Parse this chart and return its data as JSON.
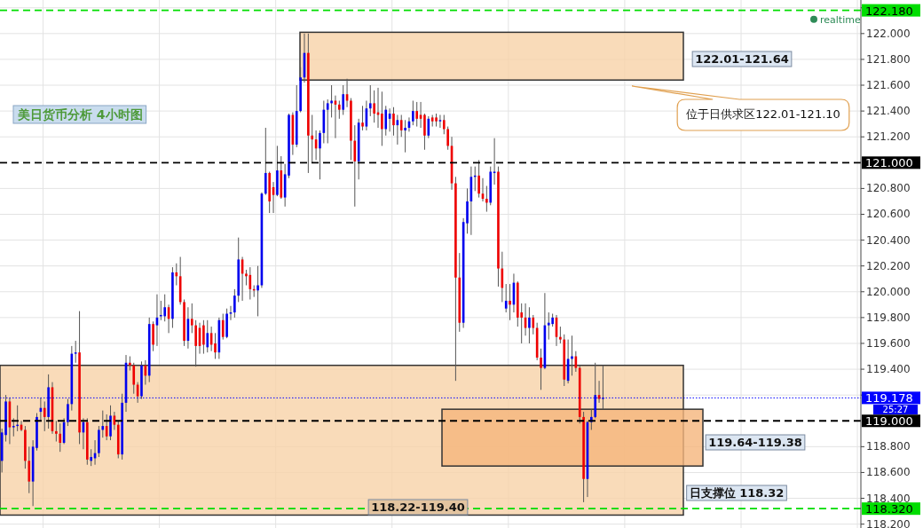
{
  "chart_data": {
    "type": "candlestick",
    "title": "美日货币分析 4小时图",
    "categories": [
      null,
      null,
      null,
      null,
      null,
      null,
      null,
      null,
      null,
      null,
      null,
      null,
      null,
      null,
      null,
      null,
      null,
      null,
      null,
      null,
      null,
      null,
      null,
      null,
      null,
      null,
      null,
      null,
      null,
      null,
      null,
      null,
      null,
      null,
      null,
      null,
      null,
      null,
      null,
      null,
      null,
      null,
      null,
      null,
      null,
      null,
      null,
      null,
      null,
      null,
      null,
      null,
      null,
      null,
      null,
      null,
      null,
      null,
      null,
      null,
      null,
      null,
      null,
      null,
      null,
      null,
      null,
      null,
      null,
      null,
      null,
      null,
      null,
      null,
      null,
      null,
      null,
      null,
      null,
      null,
      null,
      null,
      null,
      null,
      null,
      null,
      null,
      null,
      null,
      null,
      null,
      null,
      null,
      null,
      null,
      null,
      null,
      null,
      null,
      null,
      null,
      null,
      null,
      null,
      null,
      null,
      null,
      null,
      null,
      null,
      null,
      null,
      null,
      null,
      null,
      null,
      null,
      null,
      null,
      null,
      null,
      null,
      null,
      null,
      null,
      null,
      null,
      null,
      null,
      null,
      null,
      null,
      null,
      null,
      null,
      null,
      null,
      null,
      null,
      null,
      null,
      null,
      null,
      null,
      null,
      null,
      null,
      null,
      null,
      null,
      null,
      null,
      null,
      null,
      null,
      null,
      null,
      null,
      null,
      null,
      null,
      null,
      null,
      null,
      null,
      null,
      null,
      null,
      null,
      null,
      null,
      null,
      null,
      null,
      null,
      null,
      null,
      null,
      null,
      null,
      null,
      null,
      null,
      null,
      null,
      null,
      null,
      null,
      null,
      null,
      null,
      null,
      null,
      null,
      null,
      null,
      null,
      null,
      null,
      null,
      null,
      null,
      null,
      null,
      null,
      null,
      null,
      null,
      null,
      null,
      null,
      null,
      null,
      null,
      null,
      null,
      null,
      null,
      null,
      null,
      null,
      null
    ],
    "ohlc": [
      [
        118.69,
        118.94,
        118.6,
        118.91
      ],
      [
        118.89,
        119.2,
        118.84,
        119.15
      ],
      [
        119.15,
        119.18,
        118.82,
        118.95
      ],
      [
        118.95,
        119.02,
        118.88,
        118.96
      ],
      [
        118.96,
        119.12,
        118.92,
        118.97
      ],
      [
        118.97,
        119.0,
        118.92,
        118.93
      ],
      [
        118.93,
        118.96,
        118.63,
        118.69
      ],
      [
        118.69,
        118.8,
        118.44,
        118.53
      ],
      [
        118.53,
        118.85,
        118.34,
        118.8
      ],
      [
        118.79,
        119.06,
        118.77,
        119.03
      ],
      [
        119.07,
        119.18,
        119.0,
        119.1
      ],
      [
        119.1,
        119.15,
        118.92,
        119.03
      ],
      [
        119.03,
        119.36,
        118.94,
        119.26
      ],
      [
        119.26,
        119.3,
        118.9,
        118.92
      ],
      [
        118.92,
        119.0,
        118.84,
        118.9
      ],
      [
        118.9,
        118.98,
        118.76,
        118.83
      ],
      [
        118.83,
        119.02,
        118.82,
        118.99
      ],
      [
        118.99,
        119.17,
        118.96,
        119.13
      ],
      [
        119.13,
        119.58,
        119.08,
        119.52
      ],
      [
        119.52,
        119.62,
        119.45,
        119.53
      ],
      [
        119.53,
        119.85,
        118.82,
        118.91
      ],
      [
        118.91,
        119.02,
        118.78,
        118.99
      ],
      [
        118.99,
        119.02,
        118.66,
        118.7
      ],
      [
        118.69,
        118.78,
        118.65,
        118.72
      ],
      [
        118.71,
        118.85,
        118.66,
        118.75
      ],
      [
        118.75,
        118.96,
        118.72,
        118.93
      ],
      [
        118.93,
        119.08,
        118.87,
        118.96
      ],
      [
        118.96,
        119.05,
        118.85,
        118.88
      ],
      [
        118.88,
        119.12,
        118.85,
        119.04
      ],
      [
        119.04,
        119.07,
        118.93,
        118.97
      ],
      [
        118.97,
        119.0,
        118.71,
        118.74
      ],
      [
        118.74,
        119.21,
        118.7,
        119.14
      ],
      [
        119.14,
        119.51,
        119.07,
        119.45
      ],
      [
        119.45,
        119.5,
        119.39,
        119.43
      ],
      [
        119.43,
        119.45,
        119.21,
        119.28
      ],
      [
        119.28,
        119.3,
        119.14,
        119.19
      ],
      [
        119.19,
        119.46,
        119.17,
        119.43
      ],
      [
        119.43,
        119.47,
        119.28,
        119.35
      ],
      [
        119.35,
        119.8,
        119.3,
        119.75
      ],
      [
        119.75,
        119.77,
        119.54,
        119.59
      ],
      [
        119.74,
        119.98,
        119.58,
        119.8
      ],
      [
        119.81,
        119.93,
        119.78,
        119.82
      ],
      [
        119.81,
        119.98,
        119.77,
        119.88
      ],
      [
        119.88,
        119.9,
        119.68,
        119.79
      ],
      [
        119.79,
        120.19,
        119.72,
        120.15
      ],
      [
        120.15,
        120.22,
        120.05,
        120.12
      ],
      [
        120.12,
        120.27,
        119.9,
        119.92
      ],
      [
        119.92,
        119.94,
        119.58,
        119.62
      ],
      [
        119.62,
        119.88,
        119.56,
        119.79
      ],
      [
        119.79,
        119.91,
        119.68,
        119.74
      ],
      [
        119.74,
        119.78,
        119.42,
        119.58
      ],
      [
        119.72,
        119.76,
        119.52,
        119.58
      ],
      [
        119.74,
        119.78,
        119.52,
        119.59
      ],
      [
        119.57,
        119.78,
        119.53,
        119.68
      ],
      [
        119.68,
        119.73,
        119.54,
        119.59
      ],
      [
        119.6,
        119.68,
        119.48,
        119.53
      ],
      [
        119.53,
        119.8,
        119.48,
        119.78
      ],
      [
        119.78,
        119.83,
        119.63,
        119.65
      ],
      [
        119.65,
        119.87,
        119.64,
        119.83
      ],
      [
        119.83,
        119.89,
        119.78,
        119.84
      ],
      [
        119.84,
        120.02,
        119.8,
        119.97
      ],
      [
        119.97,
        120.42,
        119.92,
        120.25
      ],
      [
        120.25,
        120.27,
        119.93,
        120.14
      ],
      [
        120.14,
        120.17,
        120.05,
        120.12
      ],
      [
        120.13,
        120.19,
        119.94,
        120.02
      ],
      [
        120.02,
        120.05,
        119.96,
        120.01
      ],
      [
        120.01,
        120.2,
        119.81,
        120.05
      ],
      [
        120.05,
        120.77,
        120.03,
        120.76
      ],
      [
        120.76,
        121.27,
        120.75,
        120.92
      ],
      [
        120.92,
        120.93,
        120.61,
        120.7
      ],
      [
        120.81,
        120.85,
        120.61,
        120.75
      ],
      [
        120.75,
        121.13,
        120.74,
        120.94
      ],
      [
        120.94,
        121.05,
        120.72,
        120.73
      ],
      [
        120.73,
        120.99,
        120.66,
        120.91
      ],
      [
        120.9,
        121.38,
        120.88,
        121.37
      ],
      [
        121.37,
        121.39,
        121.06,
        121.14
      ],
      [
        121.14,
        121.6,
        121.12,
        121.4
      ],
      [
        121.4,
        121.74,
        121.39,
        121.66
      ],
      [
        121.66,
        122.0,
        121.62,
        121.85
      ],
      [
        121.85,
        122.0,
        120.92,
        121.21
      ],
      [
        121.21,
        121.37,
        121.0,
        121.18
      ],
      [
        121.18,
        121.25,
        121.02,
        121.11
      ],
      [
        121.11,
        121.25,
        120.87,
        121.23
      ],
      [
        121.23,
        121.48,
        121.15,
        121.41
      ],
      [
        121.41,
        121.49,
        121.15,
        121.46
      ],
      [
        121.46,
        121.6,
        121.35,
        121.48
      ],
      [
        121.48,
        121.52,
        121.19,
        121.45
      ],
      [
        121.45,
        121.48,
        121.34,
        121.41
      ],
      [
        121.41,
        121.6,
        121.37,
        121.53
      ],
      [
        121.53,
        121.65,
        121.43,
        121.48
      ],
      [
        121.48,
        121.5,
        121.02,
        121.17
      ],
      [
        121.17,
        121.29,
        120.66,
        121.01
      ],
      [
        121.01,
        121.34,
        120.87,
        121.31
      ],
      [
        121.31,
        121.44,
        121.25,
        121.28
      ],
      [
        121.28,
        121.48,
        121.25,
        121.42
      ],
      [
        121.42,
        121.6,
        121.36,
        121.46
      ],
      [
        121.46,
        121.56,
        121.31,
        121.38
      ],
      [
        121.39,
        121.58,
        121.27,
        121.37
      ],
      [
        121.38,
        121.55,
        121.13,
        121.26
      ],
      [
        121.26,
        121.44,
        121.21,
        121.41
      ],
      [
        121.34,
        121.42,
        121.24,
        121.38
      ],
      [
        121.38,
        121.43,
        121.21,
        121.29
      ],
      [
        121.29,
        121.37,
        121.14,
        121.33
      ],
      [
        121.33,
        121.37,
        121.2,
        121.25
      ],
      [
        121.25,
        121.33,
        121.08,
        121.27
      ],
      [
        121.27,
        121.35,
        121.24,
        121.32
      ],
      [
        121.32,
        121.48,
        121.29,
        121.4
      ],
      [
        121.4,
        121.47,
        121.28,
        121.34
      ],
      [
        121.37,
        121.47,
        121.27,
        121.34
      ],
      [
        121.37,
        121.38,
        121.1,
        121.21
      ],
      [
        121.21,
        121.36,
        121.19,
        121.34
      ],
      [
        121.35,
        121.37,
        121.28,
        121.32
      ],
      [
        121.35,
        121.38,
        121.28,
        121.32
      ],
      [
        121.32,
        121.37,
        121.27,
        121.33
      ],
      [
        121.33,
        121.37,
        121.22,
        121.26
      ],
      [
        121.26,
        121.28,
        121.1,
        121.13
      ],
      [
        121.13,
        121.2,
        120.79,
        120.84
      ],
      [
        120.84,
        120.89,
        119.31,
        120.11
      ],
      [
        120.11,
        120.3,
        119.69,
        119.76
      ],
      [
        119.76,
        120.57,
        119.72,
        120.54
      ],
      [
        120.53,
        120.8,
        120.45,
        120.7
      ],
      [
        120.7,
        120.97,
        120.44,
        120.89
      ],
      [
        120.89,
        120.97,
        120.78,
        120.9
      ],
      [
        120.9,
        121.02,
        120.73,
        120.76
      ],
      [
        120.76,
        120.88,
        120.7,
        120.72
      ],
      [
        120.72,
        120.82,
        120.62,
        120.69
      ],
      [
        120.69,
        120.97,
        120.67,
        120.93
      ],
      [
        120.92,
        121.19,
        120.83,
        120.93
      ],
      [
        120.93,
        120.97,
        120.04,
        120.18
      ],
      [
        120.18,
        120.31,
        119.92,
        120.03
      ],
      [
        119.87,
        120.06,
        119.84,
        119.93
      ],
      [
        119.93,
        120.06,
        119.78,
        119.9
      ],
      [
        119.9,
        120.14,
        119.84,
        120.07
      ],
      [
        120.07,
        120.08,
        119.73,
        119.8
      ],
      [
        119.84,
        119.91,
        119.6,
        119.8
      ],
      [
        119.8,
        119.91,
        119.66,
        119.72
      ],
      [
        119.72,
        119.88,
        119.6,
        119.8
      ],
      [
        119.8,
        119.82,
        119.67,
        119.72
      ],
      [
        119.72,
        119.76,
        119.47,
        119.49
      ],
      [
        119.49,
        119.56,
        119.24,
        119.41
      ],
      [
        119.41,
        119.99,
        119.4,
        119.74
      ],
      [
        119.74,
        119.84,
        119.63,
        119.76
      ],
      [
        119.75,
        119.83,
        119.73,
        119.8
      ],
      [
        119.8,
        119.82,
        119.58,
        119.65
      ],
      [
        119.65,
        119.73,
        119.6,
        119.63
      ],
      [
        119.63,
        119.67,
        119.27,
        119.32
      ],
      [
        119.31,
        119.63,
        119.29,
        119.48
      ],
      [
        119.48,
        119.66,
        119.35,
        119.5
      ],
      [
        119.5,
        119.54,
        119.38,
        119.41
      ],
      [
        119.41,
        119.43,
        118.98,
        119.03
      ],
      [
        119.03,
        119.07,
        118.37,
        118.55
      ],
      [
        118.55,
        119.0,
        118.41,
        118.99
      ],
      [
        118.99,
        119.09,
        118.93,
        119.03
      ],
      [
        119.03,
        119.45,
        119.02,
        119.2
      ],
      [
        119.2,
        119.31,
        119.14,
        119.17
      ],
      [
        119.17,
        119.43,
        119.09,
        119.18
      ],
      null,
      null,
      null,
      null,
      null,
      null,
      null,
      null,
      null,
      null,
      null,
      null,
      null,
      null,
      null,
      null,
      null,
      null,
      null,
      null,
      null,
      null,
      null,
      null,
      null,
      null,
      null,
      null,
      null,
      null,
      null,
      null,
      null,
      null,
      null,
      null,
      null,
      null,
      null,
      null,
      null,
      null,
      null,
      null,
      null,
      null,
      null,
      null,
      null,
      null,
      null,
      null,
      null,
      null,
      null,
      null,
      null,
      null,
      null,
      null,
      null,
      null,
      null,
      null,
      null,
      null
    ],
    "ylim": [
      118.17,
      122.26
    ],
    "yticks": [
      {
        "value": 118.2,
        "label": "118.200"
      },
      {
        "value": 118.4,
        "label": "118.400"
      },
      {
        "value": 118.6,
        "label": "118.600"
      },
      {
        "value": 118.8,
        "label": "118.800"
      },
      {
        "value": 119.2,
        "label": null
      },
      {
        "value": 119.4,
        "label": "119.400"
      },
      {
        "value": 119.6,
        "label": "119.600"
      },
      {
        "value": 119.8,
        "label": "119.800"
      },
      {
        "value": 120.0,
        "label": "120.000"
      },
      {
        "value": 120.2,
        "label": "120.200"
      },
      {
        "value": 120.4,
        "label": "120.400"
      },
      {
        "value": 120.6,
        "label": "120.600"
      },
      {
        "value": 120.8,
        "label": "120.800"
      },
      {
        "value": 121.2,
        "label": "121.200"
      },
      {
        "value": 121.4,
        "label": "121.400"
      },
      {
        "value": 121.6,
        "label": "121.600"
      },
      {
        "value": 121.8,
        "label": "121.800"
      },
      {
        "value": 122.0,
        "label": "122.000"
      },
      {
        "value": 122.2,
        "label": null
      }
    ],
    "grid": true,
    "ref_lines": [
      {
        "axis": "y",
        "value": 122.18,
        "label": "122.180",
        "color": "#00dd00",
        "line_style": "dashed"
      },
      {
        "axis": "y",
        "value": 121.0,
        "label": "121.000",
        "color": "#000000",
        "line_style": "dashed"
      },
      {
        "axis": "y",
        "value": 119.178,
        "label": "119.178",
        "color": "#0000ff",
        "line_style": "dotted"
      },
      {
        "axis": "y",
        "value": 119.0,
        "label": "119.000",
        "color": "#000000",
        "line_style": "dashed"
      },
      {
        "axis": "y",
        "value": 118.32,
        "label": "118.320",
        "color": "#00dd00",
        "line_style": "dashed"
      }
    ],
    "bands": [
      {
        "axis": "y",
        "from": 121.64,
        "to": 122.01,
        "label": "122.01-121.64",
        "color": "#f8d2a8"
      },
      {
        "axis": "y",
        "from": 118.27,
        "to": 119.43,
        "label": "118.22-119.40",
        "color": "#f8d2a8"
      },
      {
        "axis": "y",
        "from": 118.65,
        "to": 119.09,
        "label": "119.64-119.38",
        "color": "#f5b57c"
      }
    ],
    "annotations": [
      "位于日供求区122.01-121.10",
      "日支撑位 118.32",
      {
        "text": "realtime",
        "y": 122.18
      },
      "25:27"
    ]
  }
}
